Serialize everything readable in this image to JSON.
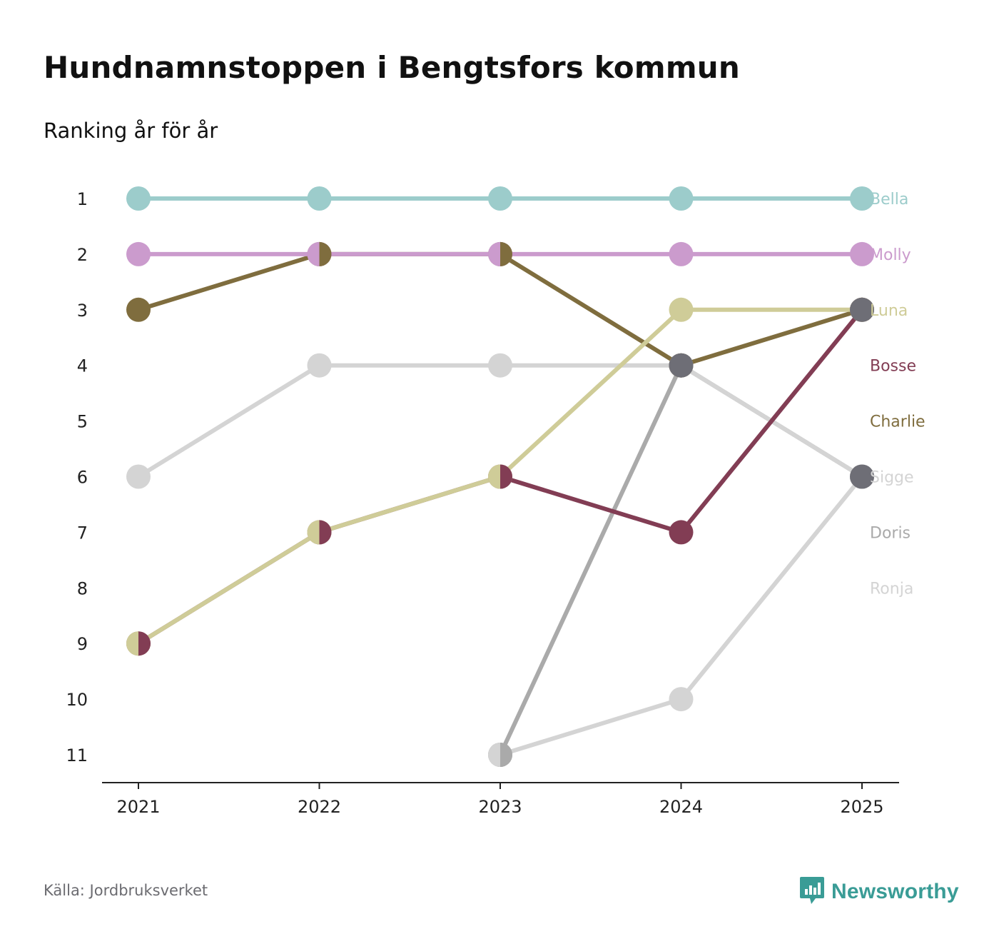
{
  "title": "Hundnamnstoppen i Bengtsfors kommun",
  "subtitle": "Ranking år för år",
  "source": "Källa: Jordbruksverket",
  "logo": {
    "text": "Newsworthy",
    "icon": "newsworthy-chart-bubble-icon",
    "color": "#3a9c96"
  },
  "chart_data": {
    "type": "line",
    "title": "Hundnamnstoppen i Bengtsfors kommun",
    "subtitle": "Ranking år för år",
    "xlabel": "",
    "ylabel": "",
    "x": [
      2021,
      2022,
      2023,
      2024,
      2025
    ],
    "y_ticks": [
      "1",
      "2",
      "3",
      "4",
      "5",
      "6",
      "7",
      "8",
      "9",
      "10",
      "11"
    ],
    "y_inverted": true,
    "ylim": [
      1,
      11
    ],
    "grid": false,
    "legend_position": "right",
    "series": [
      {
        "name": "Ronja",
        "color": "#d4d4d4",
        "values": [
          null,
          null,
          11,
          10,
          6
        ]
      },
      {
        "name": "Doris",
        "color": "#aaaaaa",
        "values": [
          null,
          null,
          11,
          4,
          6
        ]
      },
      {
        "name": "Sigge",
        "color": "#d4d4d4",
        "values": [
          6,
          4,
          4,
          4,
          6
        ]
      },
      {
        "name": "Charlie",
        "color": "#7f6d3e",
        "values": [
          3,
          2,
          2,
          4,
          3
        ]
      },
      {
        "name": "Bosse",
        "color": "#823d54",
        "values": [
          9,
          7,
          6,
          7,
          3
        ]
      },
      {
        "name": "Luna",
        "color": "#cfcc98",
        "values": [
          9,
          7,
          6,
          3,
          3
        ]
      },
      {
        "name": "Molly",
        "color": "#cb9bcd",
        "values": [
          2,
          2,
          2,
          2,
          2
        ]
      },
      {
        "name": "Bella",
        "color": "#9ccccb",
        "values": [
          1,
          1,
          1,
          1,
          1
        ]
      }
    ],
    "end_labels": [
      {
        "name": "Bella",
        "rank": 1,
        "color": "#9ccccb"
      },
      {
        "name": "Molly",
        "rank": 2,
        "color": "#cb9bcd"
      },
      {
        "name": "Luna",
        "rank": 3,
        "color": "#cfcc98"
      },
      {
        "name": "Bosse",
        "rank": 4,
        "color": "#823d54"
      },
      {
        "name": "Charlie",
        "rank": 5,
        "color": "#7f6d3e"
      },
      {
        "name": "Sigge",
        "rank": 6,
        "color": "#d4d4d4"
      },
      {
        "name": "Doris",
        "rank": 7,
        "color": "#aaaaaa"
      },
      {
        "name": "Ronja",
        "rank": 8,
        "color": "#d4d4d4"
      }
    ],
    "split_markers": [
      {
        "x": 2021,
        "rank": 9,
        "left": "#cfcc98",
        "right": "#823d54"
      },
      {
        "x": 2022,
        "rank": 2,
        "left": "#cb9bcd",
        "right": "#7f6d3e"
      },
      {
        "x": 2022,
        "rank": 7,
        "left": "#cfcc98",
        "right": "#823d54"
      },
      {
        "x": 2023,
        "rank": 2,
        "left": "#cb9bcd",
        "right": "#7f6d3e"
      },
      {
        "x": 2023,
        "rank": 6,
        "left": "#cfcc98",
        "right": "#823d54"
      },
      {
        "x": 2023,
        "rank": 11,
        "left": "#d4d4d4",
        "right": "#aaaaaa"
      }
    ],
    "merged_markers": [
      {
        "x": 2024,
        "rank": 4,
        "color": "#6e6e76"
      },
      {
        "x": 2025,
        "rank": 3,
        "color": "#6e6e76"
      },
      {
        "x": 2025,
        "rank": 6,
        "color": "#6e6e76"
      }
    ]
  }
}
